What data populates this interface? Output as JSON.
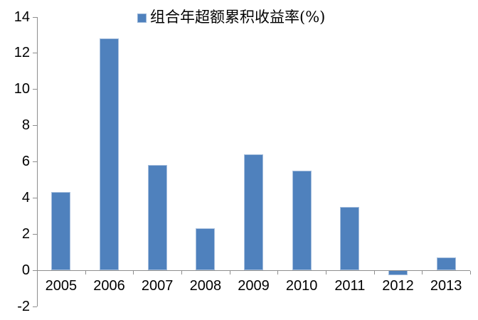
{
  "chart_data": {
    "type": "bar",
    "title": "",
    "categories": [
      "2005",
      "2006",
      "2007",
      "2008",
      "2009",
      "2010",
      "2011",
      "2012",
      "2013"
    ],
    "series": [
      {
        "name": "组合年超额累积收益率(%)",
        "values": [
          4.3,
          12.8,
          5.8,
          2.3,
          6.4,
          5.5,
          3.5,
          -0.3,
          0.7
        ]
      }
    ],
    "xlabel": "",
    "ylabel": "",
    "ylim": [
      -2,
      14
    ],
    "yticks": [
      14,
      12,
      10,
      8,
      6,
      4,
      2,
      0,
      -2
    ],
    "grid": false,
    "legend_position": "top-center",
    "colors": {
      "bar": "#4f81bd",
      "bar_border": "#a8c0de",
      "axis": "#8e8e8e",
      "text": "#000000",
      "background": "#ffffff"
    }
  }
}
